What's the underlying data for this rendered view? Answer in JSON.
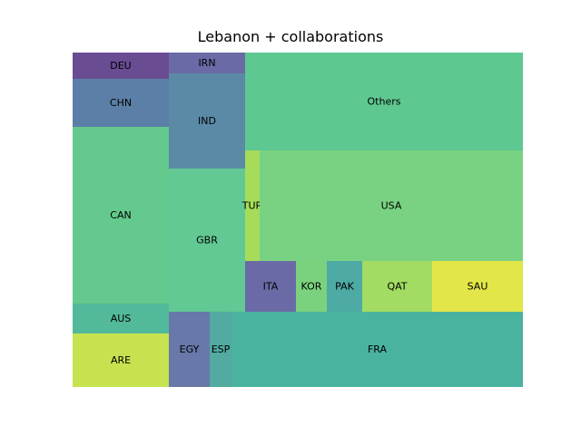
{
  "chart_data": {
    "type": "treemap",
    "title": "Lebanon + collaborations",
    "tiles": [
      {
        "label": "DEU",
        "value": 300,
        "color": "#6a4c93"
      },
      {
        "label": "CHN",
        "value": 558,
        "color": "#5b7fa6"
      },
      {
        "label": "CAN",
        "value": 2044,
        "color": "#64c98c"
      },
      {
        "label": "AUS",
        "value": 354,
        "color": "#52b99a"
      },
      {
        "label": "ARE",
        "value": 614,
        "color": "#c6e24f"
      },
      {
        "label": "IRN",
        "value": 194,
        "color": "#6a6aa6"
      },
      {
        "label": "IND",
        "value": 875,
        "color": "#5a8aa6"
      },
      {
        "label": "GBR",
        "value": 1326,
        "color": "#62c994"
      },
      {
        "label": "EGY",
        "value": 375,
        "color": "#6878a8"
      },
      {
        "label": "ESP",
        "value": 196,
        "color": "#52aaa0"
      },
      {
        "label": "Others",
        "value": 3300,
        "color": "#5ec891"
      },
      {
        "label": "TUR",
        "value": 195,
        "color": "#a6dc5a"
      },
      {
        "label": "USA",
        "value": 3516,
        "color": "#79d282"
      },
      {
        "label": "ITA",
        "value": 480,
        "color": "#6a6aa6"
      },
      {
        "label": "KOR",
        "value": 292,
        "color": "#7bd27e"
      },
      {
        "label": "PAK",
        "value": 334,
        "color": "#4eaaa4"
      },
      {
        "label": "QAT",
        "value": 662,
        "color": "#a2dc62"
      },
      {
        "label": "SAU",
        "value": 737,
        "color": "#e2e648"
      },
      {
        "label": "FRA",
        "value": 2648,
        "color": "#4ab3a0"
      }
    ]
  }
}
